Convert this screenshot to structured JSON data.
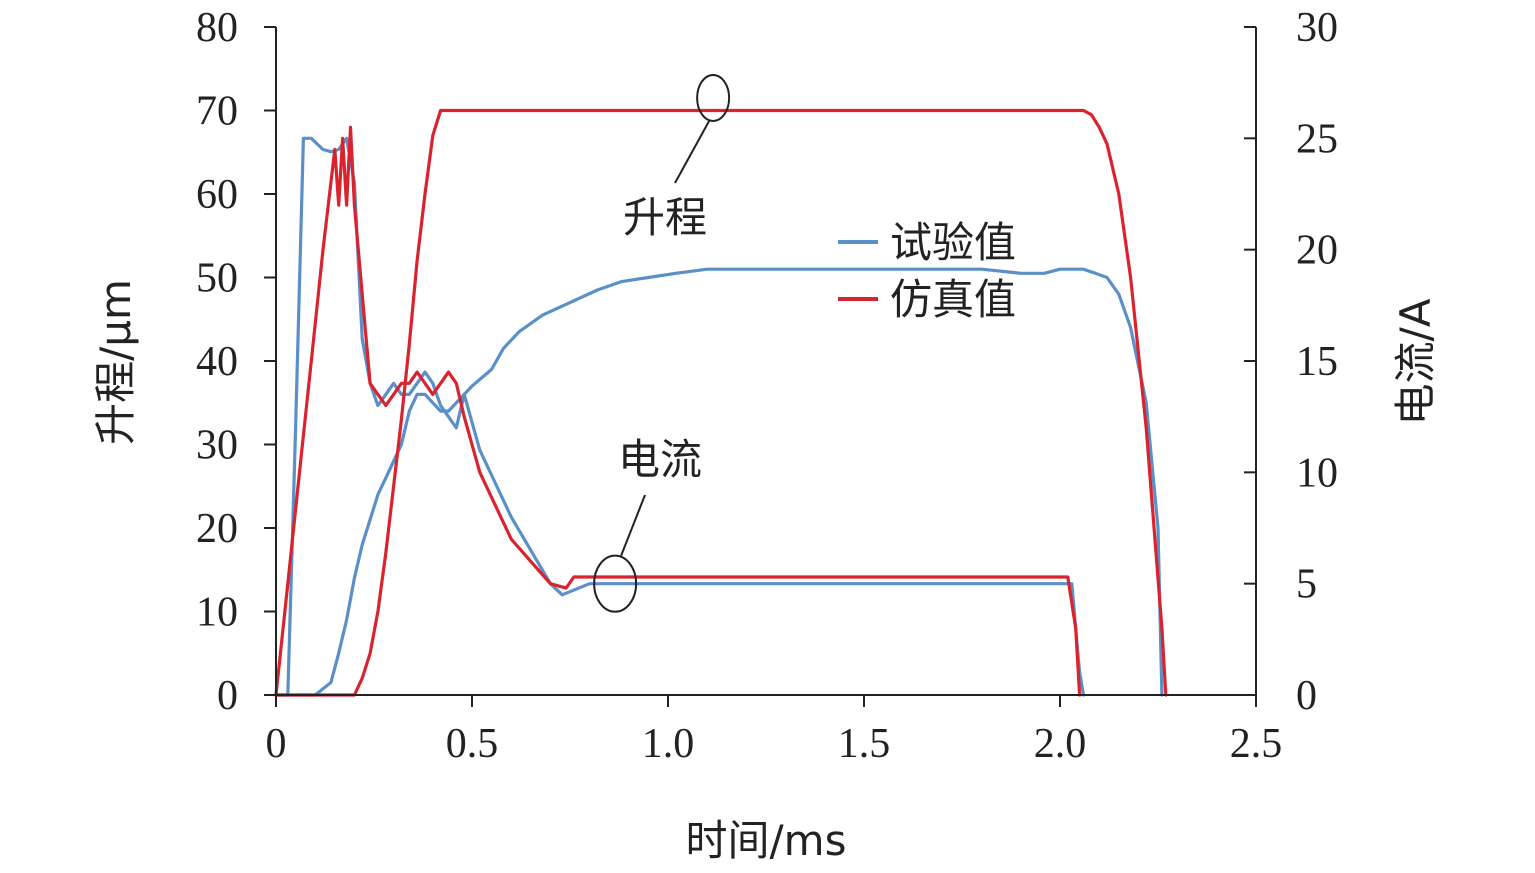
{
  "chart_data": {
    "type": "line",
    "xlabel": "时间/ms",
    "ylabel_left": "升程/μm",
    "ylabel_right": "电流/A",
    "xlim": [
      0,
      2.5
    ],
    "ylim_left": [
      0,
      80
    ],
    "ylim_right": [
      0,
      30
    ],
    "x_ticks": [
      "0",
      "0.5",
      "1.0",
      "1.5",
      "2.0",
      "2.5"
    ],
    "y_left_ticks": [
      "0",
      "10",
      "20",
      "30",
      "40",
      "50",
      "60",
      "70",
      "80"
    ],
    "y_right_ticks": [
      "0",
      "5",
      "10",
      "15",
      "20",
      "25",
      "30"
    ],
    "legend": {
      "position": "center-right",
      "entries": [
        {
          "name": "试验值",
          "color": "#5b8fc7"
        },
        {
          "name": "仿真值",
          "color": "#d9232e"
        }
      ]
    },
    "annotations": [
      {
        "text": "升程",
        "points_to": {
          "x": 1.11,
          "y": 71.5,
          "axis": "left"
        }
      },
      {
        "text": "电流",
        "points_to": {
          "x": 0.86,
          "y": 5.0,
          "axis": "right"
        }
      }
    ],
    "series": [
      {
        "name": "试验值",
        "quantity": "lift",
        "axis": "left",
        "color": "#5b8fc7",
        "x": [
          0.0,
          0.02,
          0.06,
          0.1,
          0.14,
          0.16,
          0.18,
          0.2,
          0.22,
          0.24,
          0.26,
          0.28,
          0.3,
          0.32,
          0.34,
          0.36,
          0.38,
          0.4,
          0.42,
          0.44,
          0.46,
          0.48,
          0.5,
          0.55,
          0.58,
          0.62,
          0.68,
          0.75,
          0.82,
          0.88,
          0.95,
          1.02,
          1.1,
          1.2,
          1.3,
          1.4,
          1.5,
          1.6,
          1.7,
          1.8,
          1.9,
          1.96,
          2.0,
          2.02,
          2.04,
          2.06,
          2.09,
          2.12,
          2.15,
          2.18,
          2.22,
          2.25,
          2.26
        ],
        "y": [
          0,
          0,
          0,
          0,
          1.5,
          5,
          9,
          14,
          18,
          21,
          24,
          26,
          28,
          30,
          34,
          36,
          36,
          35,
          34,
          34,
          35,
          36,
          37,
          39,
          41.5,
          43.5,
          45.5,
          47,
          48.5,
          49.5,
          50,
          50.5,
          51,
          51,
          51,
          51,
          51,
          51,
          51,
          51,
          50.5,
          50.5,
          51,
          51,
          51,
          51,
          50.5,
          50,
          48,
          44,
          35,
          20,
          0
        ]
      },
      {
        "name": "试验值",
        "quantity": "current",
        "axis": "right",
        "color": "#5b8fc7",
        "x": [
          0.0,
          0.03,
          0.05,
          0.07,
          0.09,
          0.12,
          0.14,
          0.16,
          0.18,
          0.2,
          0.22,
          0.24,
          0.26,
          0.28,
          0.3,
          0.32,
          0.34,
          0.36,
          0.38,
          0.4,
          0.42,
          0.44,
          0.46,
          0.48,
          0.52,
          0.56,
          0.6,
          0.65,
          0.7,
          0.73,
          0.8,
          0.9,
          1.0,
          1.2,
          1.4,
          1.6,
          1.8,
          1.95,
          2.03,
          2.05,
          2.06
        ],
        "y": [
          0,
          0,
          12,
          25,
          25,
          24.5,
          24.4,
          24.5,
          25,
          23,
          16,
          14,
          13,
          13.5,
          14,
          13.5,
          13.5,
          14,
          14.5,
          14,
          13,
          12.5,
          12,
          13.5,
          11,
          9.5,
          8,
          6.5,
          5,
          4.5,
          5,
          5,
          5,
          5,
          5,
          5,
          5,
          5,
          5,
          1,
          0
        ]
      },
      {
        "name": "仿真值",
        "quantity": "lift",
        "axis": "left",
        "color": "#d9232e",
        "x": [
          0.0,
          0.19,
          0.2,
          0.22,
          0.24,
          0.26,
          0.28,
          0.3,
          0.32,
          0.34,
          0.36,
          0.38,
          0.4,
          0.42,
          0.5,
          1.0,
          1.5,
          2.0,
          2.06,
          2.08,
          2.1,
          2.12,
          2.15,
          2.18,
          2.22,
          2.26,
          2.27
        ],
        "y": [
          0,
          0,
          0,
          2,
          5,
          10,
          17,
          25,
          33,
          42,
          52,
          60,
          67,
          70,
          70,
          70,
          70,
          70,
          70,
          69.5,
          68,
          66,
          60,
          50,
          32,
          8,
          0
        ]
      },
      {
        "name": "仿真值",
        "quantity": "current",
        "axis": "right",
        "color": "#d9232e",
        "x": [
          0.0,
          0.03,
          0.06,
          0.09,
          0.12,
          0.15,
          0.16,
          0.17,
          0.18,
          0.19,
          0.2,
          0.22,
          0.24,
          0.26,
          0.28,
          0.3,
          0.32,
          0.34,
          0.36,
          0.38,
          0.4,
          0.42,
          0.44,
          0.46,
          0.48,
          0.52,
          0.56,
          0.6,
          0.65,
          0.7,
          0.74,
          0.76,
          2.02,
          2.04,
          2.05
        ],
        "y": [
          0,
          5,
          10,
          15,
          20,
          24.5,
          22,
          25,
          22,
          25.5,
          22,
          18,
          14,
          13.5,
          13,
          13.5,
          14,
          14,
          14.5,
          14,
          13.5,
          14,
          14.5,
          14,
          12.5,
          10,
          8.5,
          7,
          6,
          5,
          4.8,
          5.3,
          5.3,
          3,
          0
        ]
      }
    ]
  }
}
